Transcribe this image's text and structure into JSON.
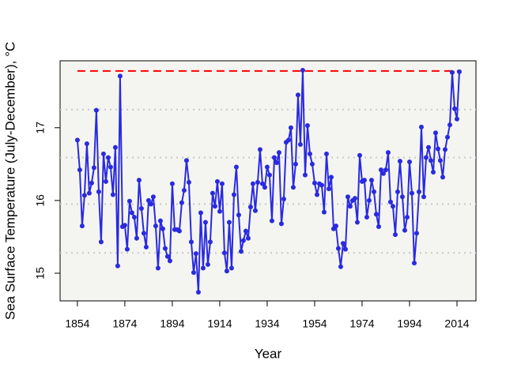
{
  "chart_data": {
    "type": "line",
    "xlabel": "Year",
    "ylabel": "Sea Surface Temperature (July-December), °C",
    "x": [
      1854,
      1855,
      1856,
      1857,
      1858,
      1859,
      1860,
      1861,
      1862,
      1863,
      1864,
      1865,
      1866,
      1867,
      1868,
      1869,
      1870,
      1871,
      1872,
      1873,
      1874,
      1875,
      1876,
      1877,
      1878,
      1879,
      1880,
      1881,
      1882,
      1883,
      1884,
      1885,
      1886,
      1887,
      1888,
      1889,
      1890,
      1891,
      1892,
      1893,
      1894,
      1895,
      1896,
      1897,
      1898,
      1899,
      1900,
      1901,
      1902,
      1903,
      1904,
      1905,
      1906,
      1907,
      1908,
      1909,
      1910,
      1911,
      1912,
      1913,
      1914,
      1915,
      1916,
      1917,
      1918,
      1919,
      1920,
      1921,
      1922,
      1923,
      1924,
      1925,
      1926,
      1927,
      1928,
      1929,
      1930,
      1931,
      1932,
      1933,
      1934,
      1935,
      1936,
      1937,
      1938,
      1939,
      1940,
      1941,
      1942,
      1943,
      1944,
      1945,
      1946,
      1947,
      1948,
      1949,
      1950,
      1951,
      1952,
      1953,
      1954,
      1955,
      1956,
      1957,
      1958,
      1959,
      1960,
      1961,
      1962,
      1963,
      1964,
      1965,
      1966,
      1967,
      1968,
      1969,
      1970,
      1971,
      1972,
      1973,
      1974,
      1975,
      1976,
      1977,
      1978,
      1979,
      1980,
      1981,
      1982,
      1983,
      1984,
      1985,
      1986,
      1987,
      1988,
      1989,
      1990,
      1991,
      1992,
      1993,
      1994,
      1995,
      1996,
      1997,
      1998,
      1999,
      2000,
      2001,
      2002,
      2003,
      2004,
      2005,
      2006,
      2007,
      2008,
      2009,
      2010,
      2011,
      2012,
      2013,
      2014,
      2015
    ],
    "values": [
      16.83,
      16.42,
      15.65,
      16.07,
      16.78,
      16.1,
      16.24,
      16.45,
      17.24,
      16.12,
      15.43,
      16.64,
      16.26,
      16.59,
      16.46,
      16.08,
      16.73,
      15.1,
      17.71,
      15.64,
      15.66,
      15.33,
      15.99,
      15.83,
      15.77,
      15.48,
      16.28,
      15.89,
      15.55,
      15.36,
      16.0,
      15.95,
      16.05,
      15.65,
      15.07,
      15.72,
      15.61,
      15.34,
      15.23,
      15.17,
      16.23,
      15.6,
      15.6,
      15.58,
      15.97,
      16.14,
      16.55,
      16.25,
      15.43,
      15.01,
      15.27,
      14.74,
      15.83,
      15.07,
      15.7,
      15.12,
      15.43,
      16.1,
      15.92,
      16.26,
      15.85,
      16.23,
      15.28,
      15.03,
      15.7,
      15.07,
      16.08,
      16.46,
      15.8,
      15.3,
      15.45,
      15.58,
      15.48,
      15.91,
      16.23,
      15.86,
      16.25,
      16.7,
      16.23,
      16.18,
      16.46,
      16.35,
      15.72,
      16.59,
      16.52,
      16.66,
      15.68,
      16.02,
      16.8,
      16.83,
      17.0,
      16.18,
      16.5,
      17.45,
      16.77,
      17.79,
      16.35,
      17.03,
      16.64,
      16.5,
      16.24,
      16.08,
      16.23,
      16.21,
      15.84,
      16.64,
      16.16,
      16.32,
      15.61,
      15.65,
      15.34,
      15.09,
      15.41,
      15.33,
      16.05,
      15.92,
      16.0,
      16.03,
      15.7,
      16.62,
      16.26,
      16.28,
      15.77,
      16.0,
      16.28,
      16.12,
      15.81,
      15.64,
      16.42,
      16.37,
      16.42,
      16.66,
      15.98,
      15.92,
      15.53,
      16.12,
      16.54,
      16.05,
      15.59,
      15.77,
      16.53,
      16.1,
      15.14,
      15.55,
      16.12,
      17.01,
      16.05,
      16.59,
      16.73,
      16.55,
      16.39,
      16.93,
      16.71,
      16.55,
      16.32,
      16.7,
      16.87,
      17.04,
      17.76,
      17.26,
      17.12,
      17.77
    ],
    "color": "#2a2ae0",
    "xlim": [
      1846.7,
      2022
    ],
    "xticks": [
      1854,
      1874,
      1894,
      1914,
      1934,
      1954,
      1974,
      1994,
      2014
    ],
    "ylim": [
      14.62,
      17.92
    ],
    "yticks": [
      15,
      16,
      17
    ],
    "max_line": 17.78,
    "max_line_color": "#ff0000",
    "quantile_lines": [
      17.25,
      16.59,
      15.95,
      15.28
    ],
    "quantile_line_color": "#c8c8c8"
  }
}
